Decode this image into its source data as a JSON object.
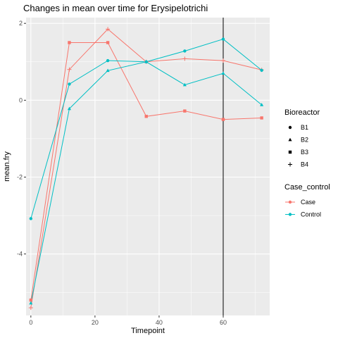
{
  "chart_data": {
    "type": "line",
    "title": "Changes in mean over time for  Erysipelotrichi",
    "xlabel": "Timepoint",
    "ylabel": "mean.fry",
    "xlim": [
      -1.5,
      74.5
    ],
    "ylim": [
      -5.6,
      2.15
    ],
    "x_ticks": [
      0,
      20,
      40,
      60
    ],
    "x_tick_labels": [
      "0",
      "20",
      "40",
      "60"
    ],
    "y_ticks": [
      -4,
      -2,
      0,
      2
    ],
    "y_tick_labels": [
      "-4",
      "-2",
      "0",
      "2"
    ],
    "grid": true,
    "vline": 60,
    "colors": {
      "Case": "#F8766D",
      "Control": "#00BFC4",
      "panel": "#EBEBEB",
      "grid": "#FFFFFF"
    },
    "legend_position": "right",
    "legends": [
      {
        "title": "Bioreactor",
        "entries": [
          {
            "label": "B1",
            "shape": "circle"
          },
          {
            "label": "B2",
            "shape": "triangle"
          },
          {
            "label": "B3",
            "shape": "square"
          },
          {
            "label": "B4",
            "shape": "plus"
          }
        ]
      },
      {
        "title": "Case_control",
        "entries": [
          {
            "label": "Case",
            "color": "#F8766D"
          },
          {
            "label": "Control",
            "color": "#00BFC4"
          }
        ]
      }
    ],
    "series": [
      {
        "group": "Case",
        "shape": "square",
        "x": [
          0,
          12,
          24,
          36,
          48,
          60,
          72
        ],
        "y": [
          -5.2,
          1.5,
          1.5,
          -0.42,
          -0.28,
          -0.5,
          -0.46
        ]
      },
      {
        "group": "Case",
        "shape": "plus",
        "x": [
          0,
          12,
          24,
          36,
          48,
          60,
          72
        ],
        "y": [
          -5.4,
          0.8,
          1.85,
          1.0,
          1.08,
          1.03,
          0.79
        ]
      },
      {
        "group": "Control",
        "shape": "circle",
        "x": [
          0,
          12,
          24,
          36,
          48,
          60,
          72
        ],
        "y": [
          -3.08,
          0.42,
          1.03,
          1.0,
          1.28,
          1.59,
          0.78
        ]
      },
      {
        "group": "Control",
        "shape": "triangle",
        "x": [
          0,
          12,
          24,
          36,
          48,
          60,
          72
        ],
        "y": [
          -5.28,
          -0.22,
          0.77,
          1.0,
          0.4,
          0.7,
          -0.12
        ]
      }
    ]
  }
}
